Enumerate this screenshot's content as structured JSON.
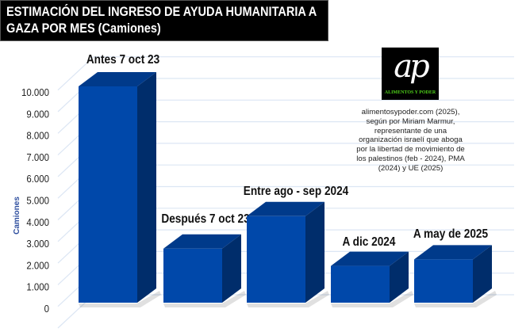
{
  "title": "ESTIMACIÓN DEL INGRESO DE AYUDA HUMANITARIA A GAZA POR MES (Camiones)",
  "logo": {
    "mark": "ap",
    "brand": "ALIMENTOS Y PODER"
  },
  "source": "alimentosypoder.com (2025), según por Miriam Marmur, representante de una organización israelí que aboga por la libertad de movimiento de los palestinos (feb - 2024), PMA (2024) y UE (2025)",
  "colors": {
    "front": "#0048AA",
    "top": "#003A8A",
    "side": "#002D6B",
    "grid": "#DCE6F4",
    "axis_title": "#2F4F9F"
  },
  "chart_data": {
    "type": "bar",
    "title": "ESTIMACIÓN DEL INGRESO DE AYUDA HUMANITARIA A GAZA POR MES (Camiones)",
    "categories": [
      "Antes 7 oct 23",
      "Después 7 oct 23",
      "Entre ago - sep 2024",
      "A dic 2024",
      "A may de 2025"
    ],
    "values": [
      10000,
      2500,
      4000,
      1700,
      2000
    ],
    "xlabel": "",
    "ylabel": "Camiones",
    "ylim": [
      0,
      11000
    ],
    "yticks": [
      0,
      1000,
      2000,
      3000,
      4000,
      5000,
      6000,
      7000,
      8000,
      9000,
      10000
    ],
    "ytick_labels": [
      "0",
      "1.000",
      "2.000",
      "3.000",
      "4.000",
      "5.000",
      "6.000",
      "7.000",
      "8.000",
      "9.000",
      "10.000"
    ],
    "grid": true,
    "legend": "none"
  }
}
